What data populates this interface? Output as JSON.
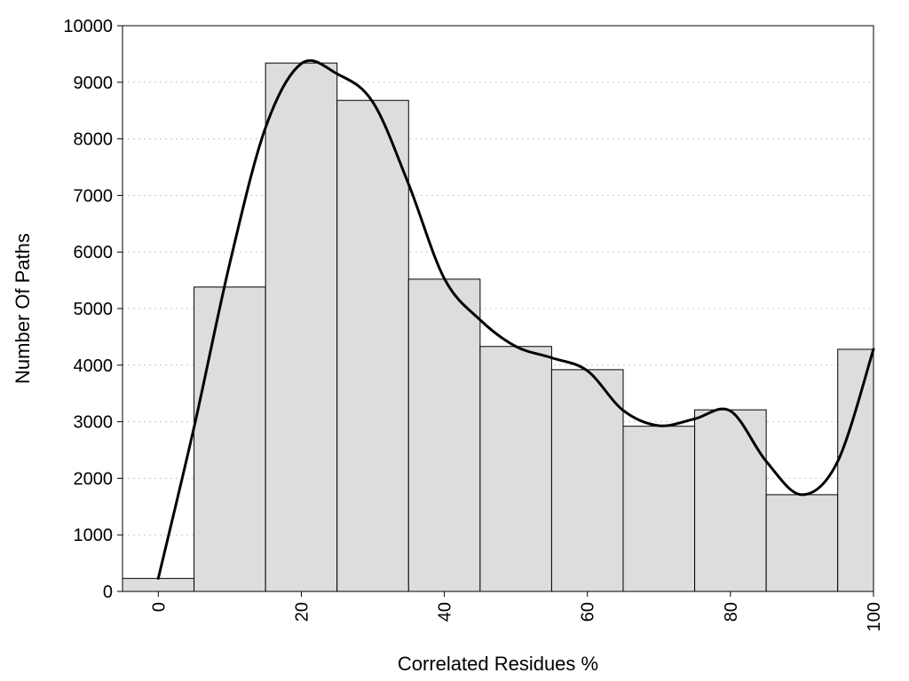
{
  "chart_data": {
    "type": "bar",
    "title": "",
    "xlabel": "Correlated Residues %",
    "ylabel": "Number Of Paths",
    "xlim": [
      -5,
      100
    ],
    "ylim": [
      0,
      10000
    ],
    "x_ticks": [
      0,
      20,
      40,
      60,
      80,
      100
    ],
    "y_ticks": [
      0,
      1000,
      2000,
      3000,
      4000,
      5000,
      6000,
      7000,
      8000,
      9000,
      10000
    ],
    "grid": "horizontal-dotted",
    "bin_width": 10,
    "bins": [
      {
        "x": 0,
        "value": 230
      },
      {
        "x": 10,
        "value": 5380
      },
      {
        "x": 20,
        "value": 9340
      },
      {
        "x": 30,
        "value": 8680
      },
      {
        "x": 40,
        "value": 5520
      },
      {
        "x": 50,
        "value": 4330
      },
      {
        "x": 60,
        "value": 3920
      },
      {
        "x": 70,
        "value": 2920
      },
      {
        "x": 80,
        "value": 3210
      },
      {
        "x": 90,
        "value": 1710
      },
      {
        "x": 100,
        "value": 4280
      }
    ],
    "curve": {
      "type": "smooth-line",
      "points": [
        [
          0,
          230
        ],
        [
          5,
          2900
        ],
        [
          10,
          5800
        ],
        [
          15,
          8200
        ],
        [
          20,
          9330
        ],
        [
          25,
          9150
        ],
        [
          30,
          8650
        ],
        [
          35,
          7200
        ],
        [
          40,
          5530
        ],
        [
          45,
          4800
        ],
        [
          50,
          4330
        ],
        [
          55,
          4130
        ],
        [
          60,
          3900
        ],
        [
          65,
          3200
        ],
        [
          70,
          2930
        ],
        [
          75,
          3050
        ],
        [
          80,
          3190
        ],
        [
          85,
          2300
        ],
        [
          90,
          1710
        ],
        [
          95,
          2300
        ],
        [
          100,
          4280
        ]
      ]
    }
  }
}
